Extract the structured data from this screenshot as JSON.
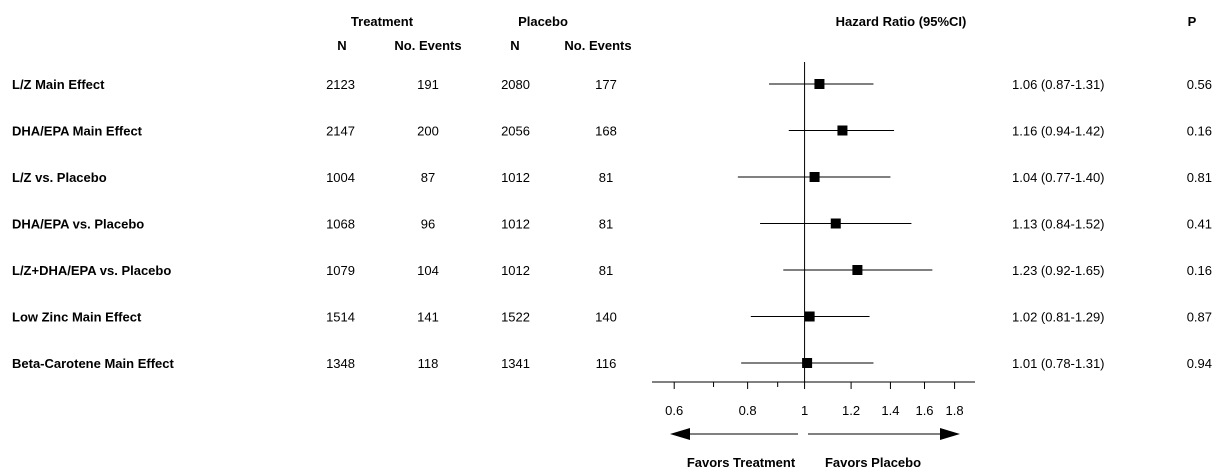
{
  "headers": {
    "treatment": "Treatment",
    "placebo": "Placebo",
    "n": "N",
    "events": "No. Events",
    "hr": "Hazard Ratio (95%CI)",
    "p": "P"
  },
  "direction": {
    "left": "Favors Treatment",
    "right": "Favors Placebo"
  },
  "chart_data": {
    "type": "forest",
    "x_scale": "log",
    "xlim": [
      0.55,
      1.95
    ],
    "reference_line": 1,
    "ticks": [
      0.6,
      0.8,
      1,
      1.2,
      1.4,
      1.6,
      1.8
    ],
    "tick_labels": [
      "0.6",
      "0.8",
      "1",
      "1.2",
      "1.4",
      "1.6",
      "1.8"
    ],
    "xlabel": "Hazard Ratio (95%CI)",
    "rows": [
      {
        "label": "L/Z Main Effect",
        "t_n": "2123",
        "t_events": "191",
        "p_n": "2080",
        "p_events": "177",
        "hr": 1.06,
        "lo": 0.87,
        "hi": 1.31,
        "ci_text": "1.06 (0.87-1.31)",
        "p": "0.56"
      },
      {
        "label": "DHA/EPA Main Effect",
        "t_n": "2147",
        "t_events": "200",
        "p_n": "2056",
        "p_events": "168",
        "hr": 1.16,
        "lo": 0.94,
        "hi": 1.42,
        "ci_text": "1.16 (0.94-1.42)",
        "p": "0.16"
      },
      {
        "label": "L/Z vs. Placebo",
        "t_n": "1004",
        "t_events": "87",
        "p_n": "1012",
        "p_events": "81",
        "hr": 1.04,
        "lo": 0.77,
        "hi": 1.4,
        "ci_text": "1.04 (0.77-1.40)",
        "p": "0.81"
      },
      {
        "label": "DHA/EPA vs. Placebo",
        "t_n": "1068",
        "t_events": "96",
        "p_n": "1012",
        "p_events": "81",
        "hr": 1.13,
        "lo": 0.84,
        "hi": 1.52,
        "ci_text": "1.13 (0.84-1.52)",
        "p": "0.41"
      },
      {
        "label": "L/Z+DHA/EPA vs. Placebo",
        "t_n": "1079",
        "t_events": "104",
        "p_n": "1012",
        "p_events": "81",
        "hr": 1.23,
        "lo": 0.92,
        "hi": 1.65,
        "ci_text": "1.23 (0.92-1.65)",
        "p": "0.16"
      },
      {
        "label": "Low Zinc Main Effect",
        "t_n": "1514",
        "t_events": "141",
        "p_n": "1522",
        "p_events": "140",
        "hr": 1.02,
        "lo": 0.81,
        "hi": 1.29,
        "ci_text": "1.02 (0.81-1.29)",
        "p": "0.87"
      },
      {
        "label": "Beta-Carotene Main Effect",
        "t_n": "1348",
        "t_events": "118",
        "p_n": "1341",
        "p_events": "116",
        "hr": 1.01,
        "lo": 0.78,
        "hi": 1.31,
        "ci_text": "1.01 (0.78-1.31)",
        "p": "0.94"
      }
    ]
  }
}
